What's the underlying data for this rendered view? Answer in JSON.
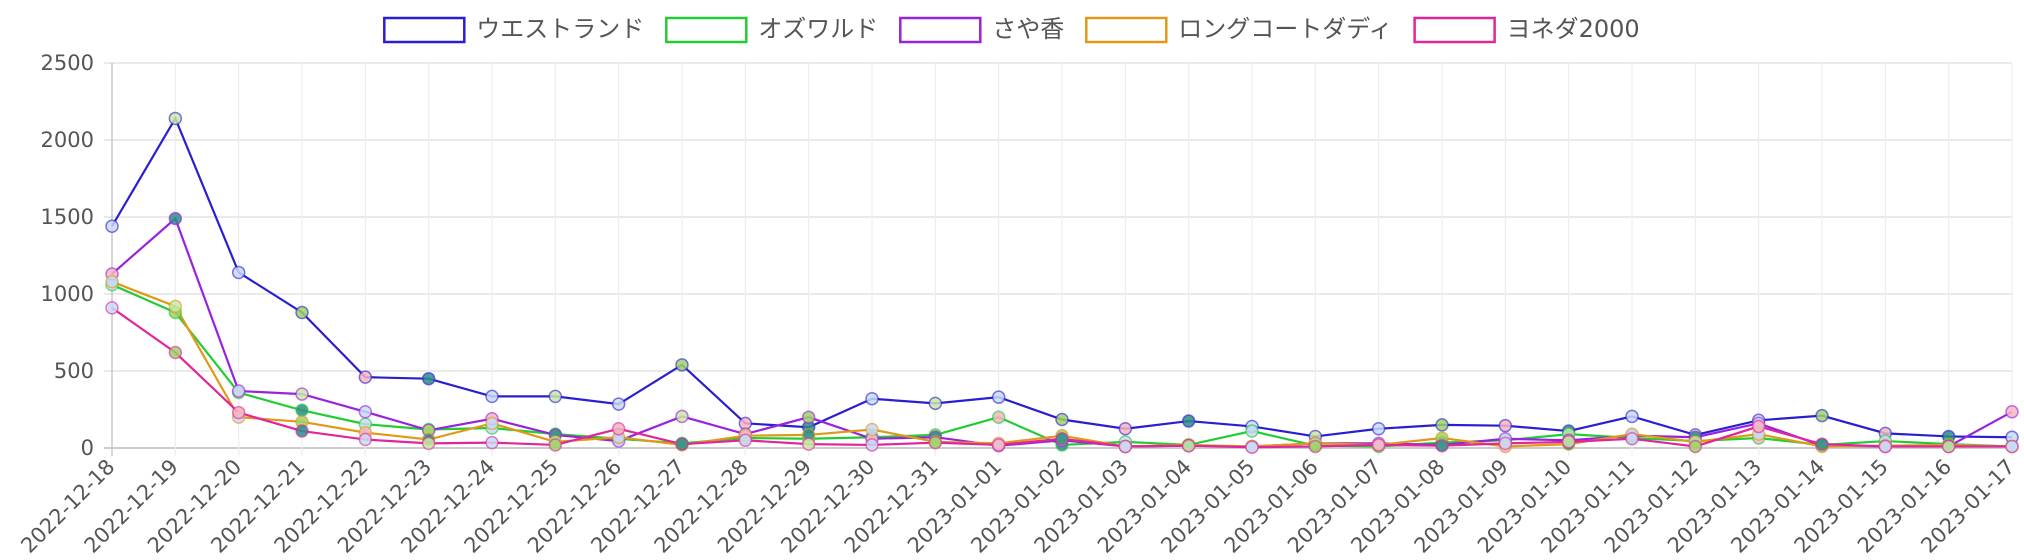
{
  "chart_data": {
    "type": "line",
    "title": "",
    "xlabel": "",
    "ylabel": "",
    "ylim": [
      0,
      2500
    ],
    "yticks": [
      "0",
      "500",
      "1000",
      "1500",
      "2000",
      "2500"
    ],
    "grid": true,
    "legend_position": "top-center",
    "categories": [
      "2022-12-18",
      "2022-12-19",
      "2022-12-20",
      "2022-12-21",
      "2022-12-22",
      "2022-12-23",
      "2022-12-24",
      "2022-12-25",
      "2022-12-26",
      "2022-12-27",
      "2022-12-28",
      "2022-12-29",
      "2022-12-30",
      "2022-12-31",
      "2023-01-01",
      "2023-01-02",
      "2023-01-03",
      "2023-01-04",
      "2023-01-05",
      "2023-01-06",
      "2023-01-07",
      "2023-01-08",
      "2023-01-09",
      "2023-01-10",
      "2023-01-11",
      "2023-01-12",
      "2023-01-13",
      "2023-01-14",
      "2023-01-15",
      "2023-01-16",
      "2023-01-17"
    ],
    "series": [
      {
        "name": "ウエストランド",
        "color": "#2a1fd0",
        "values": [
          1440,
          2140,
          1140,
          880,
          460,
          450,
          335,
          335,
          285,
          540,
          160,
          135,
          320,
          290,
          330,
          185,
          125,
          175,
          140,
          75,
          125,
          150,
          145,
          110,
          205,
          85,
          180,
          210,
          95,
          75,
          70
        ]
      },
      {
        "name": "オズワルド",
        "color": "#22cc33",
        "values": [
          1060,
          880,
          360,
          245,
          155,
          120,
          130,
          90,
          60,
          30,
          65,
          60,
          70,
          85,
          200,
          20,
          40,
          20,
          110,
          15,
          10,
          35,
          50,
          90,
          65,
          45,
          65,
          20,
          45,
          25,
          10
        ]
      },
      {
        "name": "さや香",
        "color": "#9922dd",
        "values": [
          1130,
          1490,
          370,
          350,
          235,
          115,
          190,
          85,
          45,
          205,
          90,
          200,
          60,
          70,
          15,
          50,
          10,
          15,
          10,
          30,
          30,
          20,
          60,
          50,
          80,
          70,
          160,
          15,
          10,
          10,
          235
        ]
      },
      {
        "name": "ロングコートダディ",
        "color": "#e09918",
        "values": [
          1080,
          920,
          200,
          170,
          100,
          55,
          160,
          40,
          70,
          20,
          80,
          85,
          120,
          40,
          30,
          80,
          10,
          20,
          10,
          30,
          20,
          65,
          10,
          25,
          90,
          40,
          90,
          10,
          15,
          20,
          10
        ]
      },
      {
        "name": "ヨネダ2000",
        "color": "#e0269c",
        "values": [
          910,
          620,
          230,
          110,
          55,
          30,
          35,
          20,
          125,
          25,
          50,
          25,
          20,
          35,
          20,
          60,
          10,
          15,
          5,
          10,
          20,
          15,
          30,
          40,
          60,
          10,
          140,
          25,
          10,
          10,
          10
        ]
      }
    ]
  }
}
